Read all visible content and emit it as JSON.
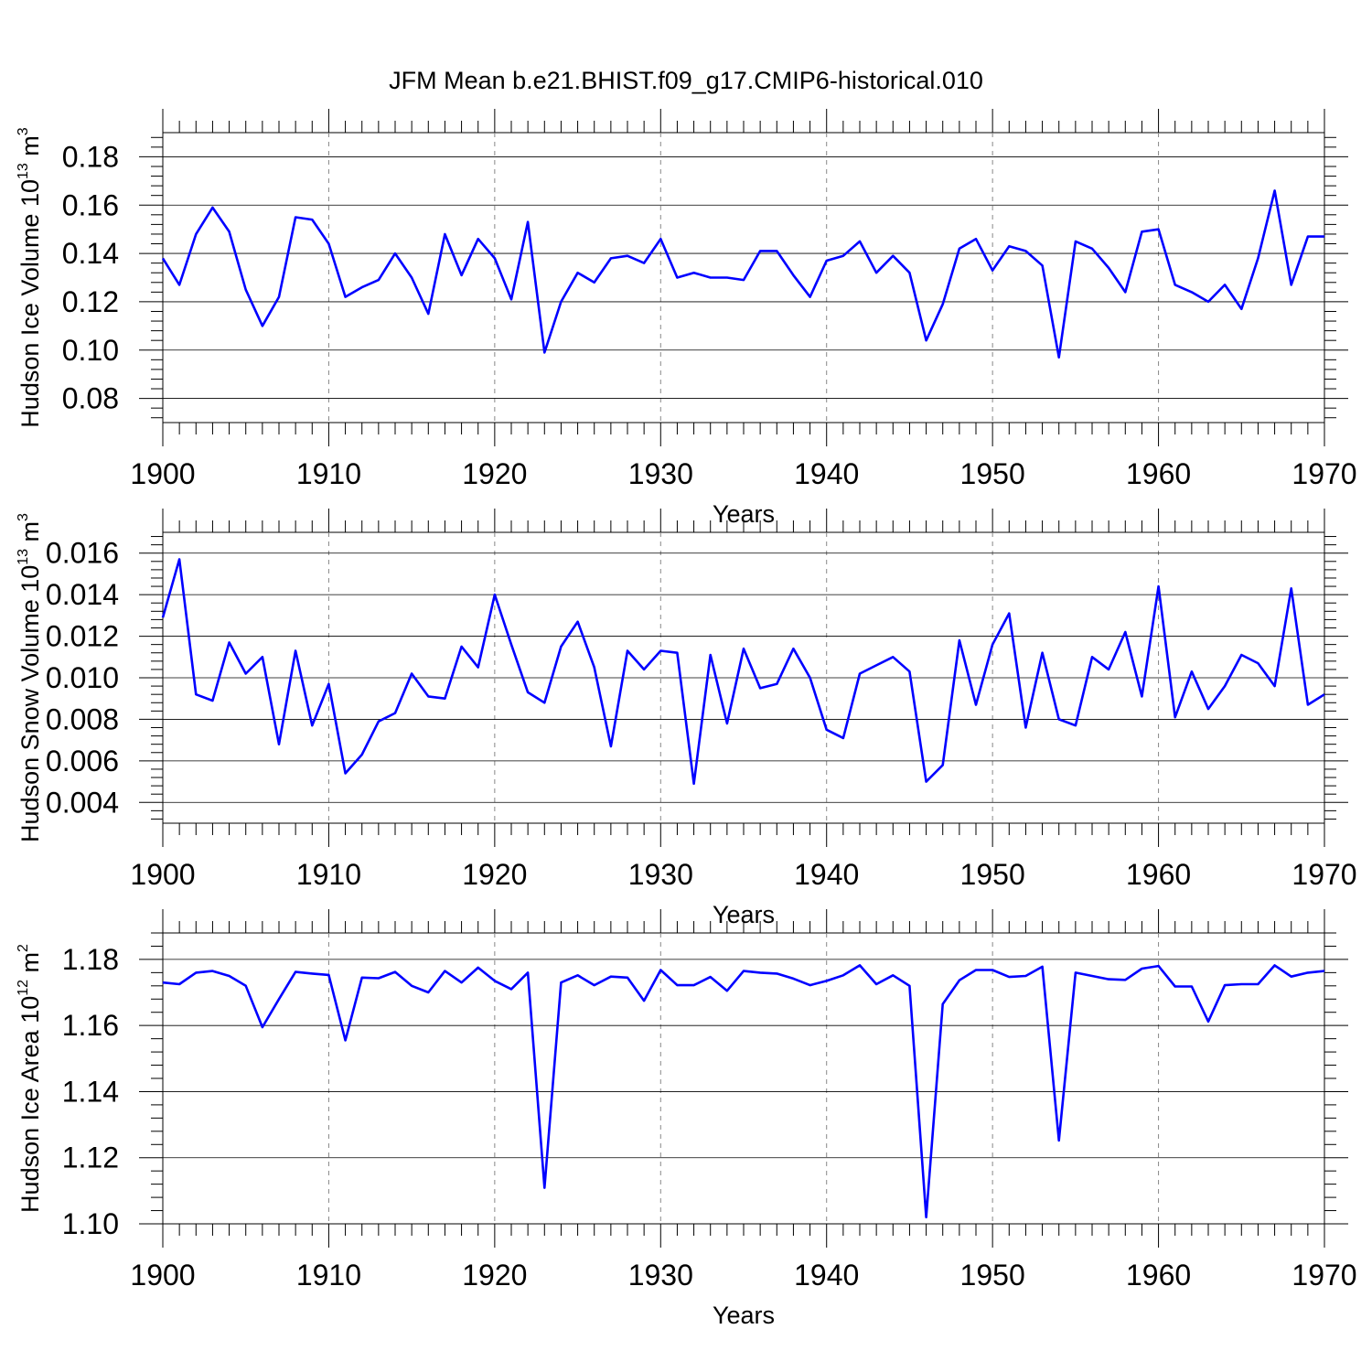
{
  "title": "JFM Mean b.e21.BHIST.f09_g17.CMIP6-historical.010",
  "line_color": "#0000ff",
  "chart_data": [
    {
      "type": "line",
      "xlabel": "Years",
      "ylabel": {
        "text": "Hudson Ice Volume 10",
        "exp": "13",
        "unit": " m",
        "unit_exp": "3"
      },
      "xlim": [
        1900,
        1970
      ],
      "ylim": [
        0.07,
        0.19
      ],
      "grid": "vertical-dashed",
      "x_ticks": [
        1900,
        1910,
        1920,
        1930,
        1940,
        1950,
        1960,
        1970
      ],
      "x_tick_labels": [
        "1900",
        "1910",
        "1920",
        "1930",
        "1940",
        "1950",
        "1960",
        "1970"
      ],
      "y_ticks": [
        0.08,
        0.1,
        0.12,
        0.14,
        0.16,
        0.18
      ],
      "y_tick_labels": [
        "0.08",
        "0.10",
        "0.12",
        "0.14",
        "0.16",
        "0.18"
      ],
      "x_start": 1900,
      "values": [
        0.138,
        0.127,
        0.148,
        0.159,
        0.149,
        0.125,
        0.11,
        0.122,
        0.155,
        0.154,
        0.144,
        0.122,
        0.126,
        0.129,
        0.14,
        0.13,
        0.115,
        0.148,
        0.131,
        0.146,
        0.138,
        0.121,
        0.153,
        0.099,
        0.12,
        0.132,
        0.128,
        0.138,
        0.139,
        0.136,
        0.146,
        0.13,
        0.132,
        0.13,
        0.13,
        0.129,
        0.141,
        0.141,
        0.131,
        0.122,
        0.137,
        0.139,
        0.145,
        0.132,
        0.139,
        0.132,
        0.104,
        0.119,
        0.142,
        0.146,
        0.133,
        0.143,
        0.141,
        0.135,
        0.097,
        0.145,
        0.142,
        0.134,
        0.124,
        0.149,
        0.15,
        0.127,
        0.124,
        0.12,
        0.127,
        0.117,
        0.138,
        0.166,
        0.127,
        0.147,
        0.147
      ]
    },
    {
      "type": "line",
      "xlabel": "Years",
      "ylabel": {
        "text": "Hudson Snow Volume 10",
        "exp": "13",
        "unit": " m",
        "unit_exp": "3"
      },
      "xlim": [
        1900,
        1970
      ],
      "ylim": [
        0.003,
        0.017
      ],
      "grid": "vertical-dashed",
      "x_ticks": [
        1900,
        1910,
        1920,
        1930,
        1940,
        1950,
        1960,
        1970
      ],
      "x_tick_labels": [
        "1900",
        "1910",
        "1920",
        "1930",
        "1940",
        "1950",
        "1960",
        "1970"
      ],
      "y_ticks": [
        0.004,
        0.006,
        0.008,
        0.01,
        0.012,
        0.014,
        0.016
      ],
      "y_tick_labels": [
        "0.004",
        "0.006",
        "0.008",
        "0.010",
        "0.012",
        "0.014",
        "0.016"
      ],
      "x_start": 1900,
      "values": [
        0.0129,
        0.0157,
        0.0092,
        0.0089,
        0.0117,
        0.0102,
        0.011,
        0.0068,
        0.0113,
        0.0077,
        0.0097,
        0.0054,
        0.0063,
        0.0079,
        0.0083,
        0.0102,
        0.0091,
        0.009,
        0.0115,
        0.0105,
        0.014,
        0.0116,
        0.0093,
        0.0088,
        0.0115,
        0.0127,
        0.0105,
        0.0067,
        0.0113,
        0.0104,
        0.0113,
        0.0112,
        0.0049,
        0.0111,
        0.0078,
        0.0114,
        0.0095,
        0.0097,
        0.0114,
        0.01,
        0.0075,
        0.0071,
        0.0102,
        0.0106,
        0.011,
        0.0103,
        0.005,
        0.0058,
        0.0118,
        0.0087,
        0.0116,
        0.0131,
        0.0076,
        0.0112,
        0.008,
        0.0077,
        0.011,
        0.0104,
        0.0122,
        0.0091,
        0.0144,
        0.0081,
        0.0103,
        0.0085,
        0.0096,
        0.0111,
        0.0107,
        0.0096,
        0.0143,
        0.0087,
        0.0092
      ]
    },
    {
      "type": "line",
      "xlabel": "Years",
      "ylabel": {
        "text": "Hudson Ice Area 10",
        "exp": "12",
        "unit": " m",
        "unit_exp": "2"
      },
      "xlim": [
        1900,
        1970
      ],
      "ylim": [
        1.1,
        1.188
      ],
      "grid": "vertical-dashed",
      "x_ticks": [
        1900,
        1910,
        1920,
        1930,
        1940,
        1950,
        1960,
        1970
      ],
      "x_tick_labels": [
        "1900",
        "1910",
        "1920",
        "1930",
        "1940",
        "1950",
        "1960",
        "1970"
      ],
      "y_ticks": [
        1.1,
        1.12,
        1.14,
        1.16,
        1.18
      ],
      "y_tick_labels": [
        "1.10",
        "1.12",
        "1.14",
        "1.16",
        "1.18"
      ],
      "x_start": 1900,
      "values": [
        1.173,
        1.1725,
        1.176,
        1.1765,
        1.175,
        1.172,
        1.1595,
        1.168,
        1.1762,
        1.1757,
        1.1753,
        1.1555,
        1.1745,
        1.1743,
        1.1762,
        1.172,
        1.17,
        1.1765,
        1.173,
        1.1775,
        1.1735,
        1.171,
        1.176,
        1.1109,
        1.173,
        1.1752,
        1.1722,
        1.1748,
        1.1745,
        1.1675,
        1.1768,
        1.1722,
        1.1722,
        1.1747,
        1.1705,
        1.1765,
        1.176,
        1.1757,
        1.1742,
        1.1722,
        1.1735,
        1.1752,
        1.1782,
        1.1725,
        1.1752,
        1.172,
        1.102,
        1.1665,
        1.1737,
        1.1768,
        1.1768,
        1.1747,
        1.175,
        1.1778,
        1.1252,
        1.176,
        1.175,
        1.174,
        1.1738,
        1.1772,
        1.178,
        1.1718,
        1.1718,
        1.1612,
        1.1722,
        1.1725,
        1.1725,
        1.1782,
        1.1748,
        1.176,
        1.1765
      ]
    }
  ]
}
